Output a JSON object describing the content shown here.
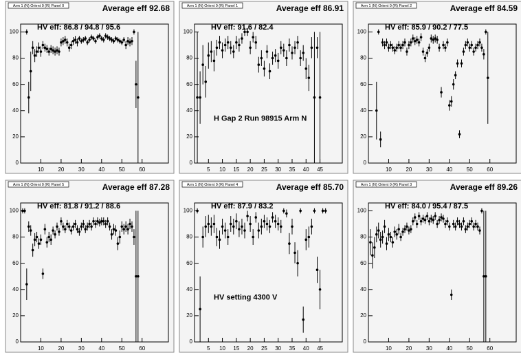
{
  "chart_data": [
    {
      "type": "scatter",
      "title": "Arm 1 (N) Orient 0 (R) Panel 0",
      "annotation": "Average eff 92.68",
      "subtitle": "HV eff:  86.8 / 94.8 / 95.6",
      "color": "#000000",
      "xlim": [
        0,
        73
      ],
      "ylim": [
        0,
        106
      ],
      "xticks": [
        10,
        20,
        30,
        40,
        50,
        60
      ],
      "yticks": [
        0,
        20,
        40,
        60,
        80,
        100
      ],
      "x": [
        3,
        4,
        5,
        6,
        7,
        8,
        9,
        10,
        11,
        12,
        13,
        14,
        15,
        16,
        17,
        18,
        19,
        20,
        21,
        22,
        23,
        24,
        25,
        26,
        27,
        28,
        29,
        30,
        31,
        32,
        33,
        34,
        35,
        36,
        37,
        38,
        39,
        40,
        41,
        42,
        43,
        44,
        45,
        46,
        47,
        48,
        49,
        50,
        51,
        52,
        53,
        54,
        55,
        56,
        57,
        58
      ],
      "values": [
        100,
        50,
        70,
        88,
        82,
        85,
        88,
        85,
        90,
        88,
        87,
        85,
        87,
        86,
        85,
        86,
        85,
        92,
        93,
        94,
        92,
        88,
        90,
        93,
        94,
        92,
        95,
        93,
        94,
        95,
        92,
        94,
        96,
        95,
        93,
        96,
        97,
        95,
        94,
        97,
        96,
        95,
        94,
        93,
        95,
        94,
        93,
        92,
        94,
        90,
        93,
        92,
        93,
        100,
        60,
        50
      ],
      "errors": [
        2,
        12,
        15,
        5,
        5,
        4,
        4,
        4,
        3,
        3,
        3,
        3,
        3,
        3,
        3,
        3,
        3,
        3,
        3,
        3,
        3,
        3,
        3,
        3,
        3,
        3,
        2,
        2,
        2,
        2,
        2,
        2,
        2,
        2,
        2,
        2,
        2,
        2,
        2,
        2,
        2,
        2,
        2,
        2,
        2,
        2,
        2,
        2,
        2,
        3,
        3,
        3,
        3,
        2,
        18,
        50
      ]
    },
    {
      "type": "scatter",
      "title": "Arm 1 (N) Orient 0 (R) Panel 1",
      "annotation": "Average eff 86.91",
      "subtitle": "HV eff:  91.6 / 82.4",
      "note": "H Gap 2 Run 98915 Arm N",
      "color": "#000000",
      "xlim": [
        0,
        53
      ],
      "ylim": [
        0,
        106
      ],
      "xticks": [
        5,
        10,
        15,
        20,
        25,
        30,
        35,
        40,
        45
      ],
      "yticks": [
        0,
        20,
        40,
        60,
        80,
        100
      ],
      "x": [
        1,
        2,
        3,
        4,
        5,
        6,
        7,
        8,
        9,
        10,
        11,
        12,
        13,
        14,
        15,
        16,
        17,
        18,
        19,
        20,
        21,
        22,
        23,
        24,
        25,
        26,
        27,
        28,
        29,
        30,
        31,
        32,
        33,
        34,
        35,
        36,
        37,
        38,
        39,
        40,
        41,
        42,
        43,
        44,
        45
      ],
      "values": [
        50,
        50,
        75,
        62,
        82,
        85,
        78,
        88,
        92,
        86,
        90,
        92,
        88,
        85,
        92,
        90,
        95,
        100,
        100,
        88,
        96,
        92,
        75,
        80,
        72,
        85,
        70,
        80,
        82,
        78,
        88,
        86,
        80,
        90,
        84,
        88,
        92,
        80,
        84,
        72,
        65,
        88,
        50,
        88,
        50
      ],
      "errors": [
        50,
        20,
        15,
        12,
        10,
        8,
        8,
        6,
        5,
        6,
        5,
        5,
        5,
        5,
        5,
        5,
        4,
        3,
        3,
        5,
        4,
        5,
        6,
        6,
        6,
        5,
        6,
        5,
        5,
        6,
        5,
        5,
        6,
        5,
        5,
        5,
        5,
        6,
        6,
        8,
        10,
        8,
        50,
        8,
        50
      ]
    },
    {
      "type": "scatter",
      "title": "Arm 1 (N) Orient 0 (R) Panel 2",
      "annotation": "Average eff 84.59",
      "subtitle": "HV eff:  85.9 / 90.2 / 77.5",
      "color": "#000000",
      "xlim": [
        0,
        73
      ],
      "ylim": [
        0,
        106
      ],
      "xticks": [
        10,
        20,
        30,
        40,
        50,
        60
      ],
      "yticks": [
        0,
        20,
        40,
        60,
        80,
        100
      ],
      "x": [
        4,
        5,
        6,
        7,
        8,
        9,
        10,
        11,
        12,
        13,
        14,
        15,
        16,
        17,
        18,
        19,
        20,
        21,
        22,
        23,
        24,
        25,
        26,
        27,
        28,
        29,
        30,
        31,
        32,
        33,
        34,
        35,
        36,
        37,
        38,
        39,
        40,
        41,
        42,
        43,
        44,
        45,
        46,
        47,
        48,
        49,
        50,
        51,
        52,
        53,
        54,
        55,
        56,
        57,
        58,
        59
      ],
      "values": [
        40,
        100,
        18,
        92,
        90,
        92,
        88,
        90,
        88,
        86,
        88,
        90,
        88,
        90,
        92,
        85,
        90,
        92,
        95,
        93,
        94,
        92,
        96,
        85,
        80,
        84,
        88,
        95,
        94,
        95,
        94,
        88,
        54,
        90,
        88,
        92,
        44,
        47,
        60,
        67,
        76,
        22,
        76,
        85,
        90,
        92,
        88,
        90,
        85,
        88,
        90,
        92,
        88,
        83,
        100,
        65
      ],
      "errors": [
        22,
        2,
        6,
        3,
        3,
        3,
        3,
        3,
        3,
        3,
        3,
        3,
        3,
        3,
        3,
        3,
        3,
        3,
        3,
        3,
        3,
        3,
        3,
        3,
        3,
        3,
        3,
        3,
        3,
        3,
        3,
        3,
        4,
        3,
        3,
        3,
        4,
        4,
        4,
        3,
        3,
        3,
        3,
        3,
        3,
        3,
        3,
        3,
        3,
        3,
        3,
        3,
        3,
        4,
        2,
        35
      ]
    },
    {
      "type": "scatter",
      "title": "Arm 1 (N) Orient 0 (R) Panel 5",
      "annotation": "Average eff 87.28",
      "subtitle": "HV eff:  81.8 / 91.2 / 88.6",
      "color": "#000000",
      "xlim": [
        0,
        73
      ],
      "ylim": [
        0,
        106
      ],
      "xticks": [
        10,
        20,
        30,
        40,
        50,
        60
      ],
      "yticks": [
        0,
        20,
        40,
        60,
        80,
        100
      ],
      "x": [
        1,
        2,
        3,
        4,
        5,
        6,
        7,
        8,
        9,
        10,
        11,
        12,
        13,
        14,
        15,
        16,
        17,
        18,
        19,
        20,
        21,
        22,
        23,
        24,
        25,
        26,
        27,
        28,
        29,
        30,
        31,
        32,
        33,
        34,
        35,
        36,
        37,
        38,
        39,
        40,
        41,
        42,
        43,
        44,
        45,
        46,
        47,
        48,
        49,
        50,
        51,
        52,
        53,
        54,
        55,
        56,
        57,
        58
      ],
      "values": [
        100,
        100,
        44,
        88,
        85,
        70,
        78,
        80,
        75,
        78,
        52,
        86,
        76,
        80,
        78,
        85,
        82,
        88,
        84,
        92,
        88,
        86,
        90,
        88,
        85,
        88,
        90,
        86,
        84,
        88,
        90,
        86,
        88,
        90,
        88,
        92,
        90,
        92,
        91,
        92,
        92,
        90,
        92,
        88,
        82,
        86,
        85,
        75,
        80,
        88,
        86,
        88,
        86,
        90,
        88,
        80,
        50,
        50
      ],
      "errors": [
        2,
        2,
        12,
        4,
        4,
        5,
        5,
        4,
        4,
        4,
        4,
        4,
        4,
        4,
        4,
        3,
        3,
        3,
        3,
        3,
        3,
        3,
        3,
        3,
        3,
        3,
        3,
        3,
        3,
        3,
        3,
        3,
        3,
        3,
        3,
        3,
        3,
        3,
        3,
        3,
        3,
        3,
        3,
        3,
        4,
        4,
        4,
        5,
        5,
        4,
        4,
        4,
        4,
        4,
        4,
        6,
        50,
        50
      ]
    },
    {
      "type": "scatter",
      "title": "Arm 1 (N) Orient 0 (R) Panel 4",
      "annotation": "Average eff 85.70",
      "subtitle": "HV eff:  87.9 / 83.2",
      "note": "HV setting 4300 V",
      "color": "#000000",
      "xlim": [
        0,
        53
      ],
      "ylim": [
        0,
        106
      ],
      "xticks": [
        5,
        10,
        15,
        20,
        25,
        30,
        35,
        40,
        45
      ],
      "yticks": [
        0,
        20,
        40,
        60,
        80,
        100
      ],
      "x": [
        1,
        2,
        3,
        4,
        5,
        6,
        7,
        8,
        9,
        10,
        11,
        12,
        13,
        14,
        15,
        16,
        17,
        18,
        19,
        20,
        21,
        22,
        23,
        24,
        25,
        26,
        27,
        28,
        29,
        30,
        31,
        32,
        33,
        34,
        35,
        36,
        37,
        38,
        39,
        40,
        41,
        42,
        43,
        44,
        45,
        46,
        47
      ],
      "values": [
        100,
        25,
        80,
        88,
        90,
        88,
        90,
        80,
        78,
        88,
        85,
        80,
        90,
        88,
        92,
        86,
        88,
        85,
        96,
        90,
        80,
        95,
        85,
        88,
        92,
        90,
        88,
        95,
        92,
        90,
        88,
        100,
        98,
        75,
        88,
        68,
        60,
        100,
        17,
        78,
        80,
        88,
        100,
        55,
        40,
        100,
        100
      ],
      "errors": [
        2,
        25,
        8,
        8,
        7,
        7,
        7,
        7,
        7,
        6,
        6,
        6,
        6,
        6,
        6,
        6,
        6,
        6,
        4,
        6,
        6,
        4,
        6,
        6,
        5,
        5,
        5,
        4,
        5,
        5,
        5,
        2,
        3,
        8,
        6,
        8,
        10,
        2,
        10,
        8,
        8,
        6,
        2,
        10,
        15,
        2,
        2
      ]
    },
    {
      "type": "scatter",
      "title": "Arm 1 (N) Orient 0 (R) Panel 3",
      "annotation": "Average eff 89.26",
      "subtitle": "HV eff:  84.0 / 95.4 / 87.5",
      "color": "#000000",
      "xlim": [
        0,
        73
      ],
      "ylim": [
        0,
        106
      ],
      "xticks": [
        10,
        20,
        30,
        40,
        50,
        60
      ],
      "yticks": [
        0,
        20,
        40,
        60,
        80,
        100
      ],
      "x": [
        1,
        2,
        3,
        4,
        5,
        6,
        7,
        8,
        9,
        10,
        11,
        12,
        13,
        14,
        15,
        16,
        17,
        18,
        19,
        20,
        21,
        22,
        23,
        24,
        25,
        26,
        27,
        28,
        29,
        30,
        31,
        32,
        33,
        34,
        35,
        36,
        37,
        38,
        39,
        40,
        41,
        42,
        43,
        44,
        45,
        46,
        47,
        48,
        49,
        50,
        51,
        52,
        53,
        54,
        55,
        56,
        57,
        58
      ],
      "values": [
        76,
        66,
        72,
        82,
        85,
        78,
        80,
        88,
        75,
        82,
        80,
        76,
        84,
        82,
        86,
        80,
        84,
        86,
        88,
        85,
        86,
        92,
        95,
        90,
        96,
        92,
        94,
        93,
        96,
        92,
        94,
        93,
        96,
        90,
        93,
        95,
        94,
        90,
        92,
        88,
        36,
        90,
        88,
        92,
        90,
        88,
        92,
        86,
        88,
        90,
        92,
        88,
        90,
        88,
        85,
        100,
        50,
        50
      ],
      "errors": [
        10,
        10,
        8,
        6,
        6,
        6,
        5,
        5,
        5,
        5,
        4,
        4,
        4,
        4,
        4,
        3,
        3,
        3,
        3,
        3,
        3,
        3,
        3,
        3,
        3,
        3,
        3,
        3,
        3,
        3,
        3,
        3,
        3,
        3,
        3,
        3,
        3,
        3,
        3,
        3,
        4,
        3,
        3,
        3,
        3,
        3,
        3,
        3,
        3,
        3,
        3,
        3,
        3,
        3,
        3,
        2,
        50,
        50
      ]
    }
  ]
}
